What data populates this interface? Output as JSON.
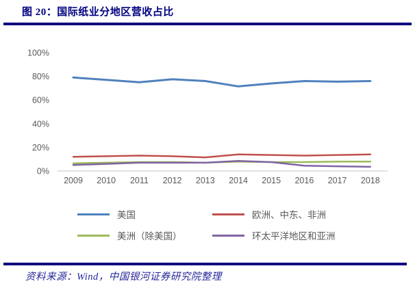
{
  "header": {
    "title": "图 20：国际纸业分地区营收占比"
  },
  "footer": {
    "source": "资料来源：Wind，中国银河证券研究院整理"
  },
  "colors": {
    "title_navy": "#000080",
    "rule_navy": "#10067e",
    "axis_text_gray": "#595959",
    "axis_line_gray": "#d9d9d9",
    "series_blue": "#4f81bd",
    "series_red": "#c0504d",
    "series_green": "#9bbb59",
    "series_purple": "#8064a2"
  },
  "chart_data": {
    "type": "line",
    "categories": [
      "2009",
      "2010",
      "2011",
      "2012",
      "2013",
      "2014",
      "2015",
      "2016",
      "2017",
      "2018"
    ],
    "series": [
      {
        "name": "美国",
        "color": "#4f81bd",
        "values": [
          79,
          77,
          75,
          77.5,
          76,
          71.5,
          74,
          76,
          75.5,
          76
        ]
      },
      {
        "name": "欧洲、中东、非洲",
        "color": "#c0504d",
        "values": [
          12,
          12.5,
          13,
          12.5,
          11.5,
          14,
          13.5,
          13,
          13.5,
          14
        ]
      },
      {
        "name": "美洲（除美国）",
        "color": "#9bbb59",
        "values": [
          6.5,
          7,
          7.5,
          7.5,
          7,
          8,
          7.5,
          7.5,
          8,
          8
        ]
      },
      {
        "name": "环太平洋地区和亚洲",
        "color": "#8064a2",
        "values": [
          5,
          6,
          7,
          7,
          7,
          8.5,
          7.5,
          4.5,
          4,
          3.5
        ]
      }
    ],
    "ylim": [
      0,
      100
    ],
    "yticks": [
      "0%",
      "20%",
      "40%",
      "60%",
      "80%",
      "100%"
    ],
    "ytick_values": [
      0,
      20,
      40,
      60,
      80,
      100
    ],
    "grid": false,
    "legend_position": "bottom",
    "title": "国际纸业分地区营收占比",
    "xlabel": "",
    "ylabel": ""
  }
}
